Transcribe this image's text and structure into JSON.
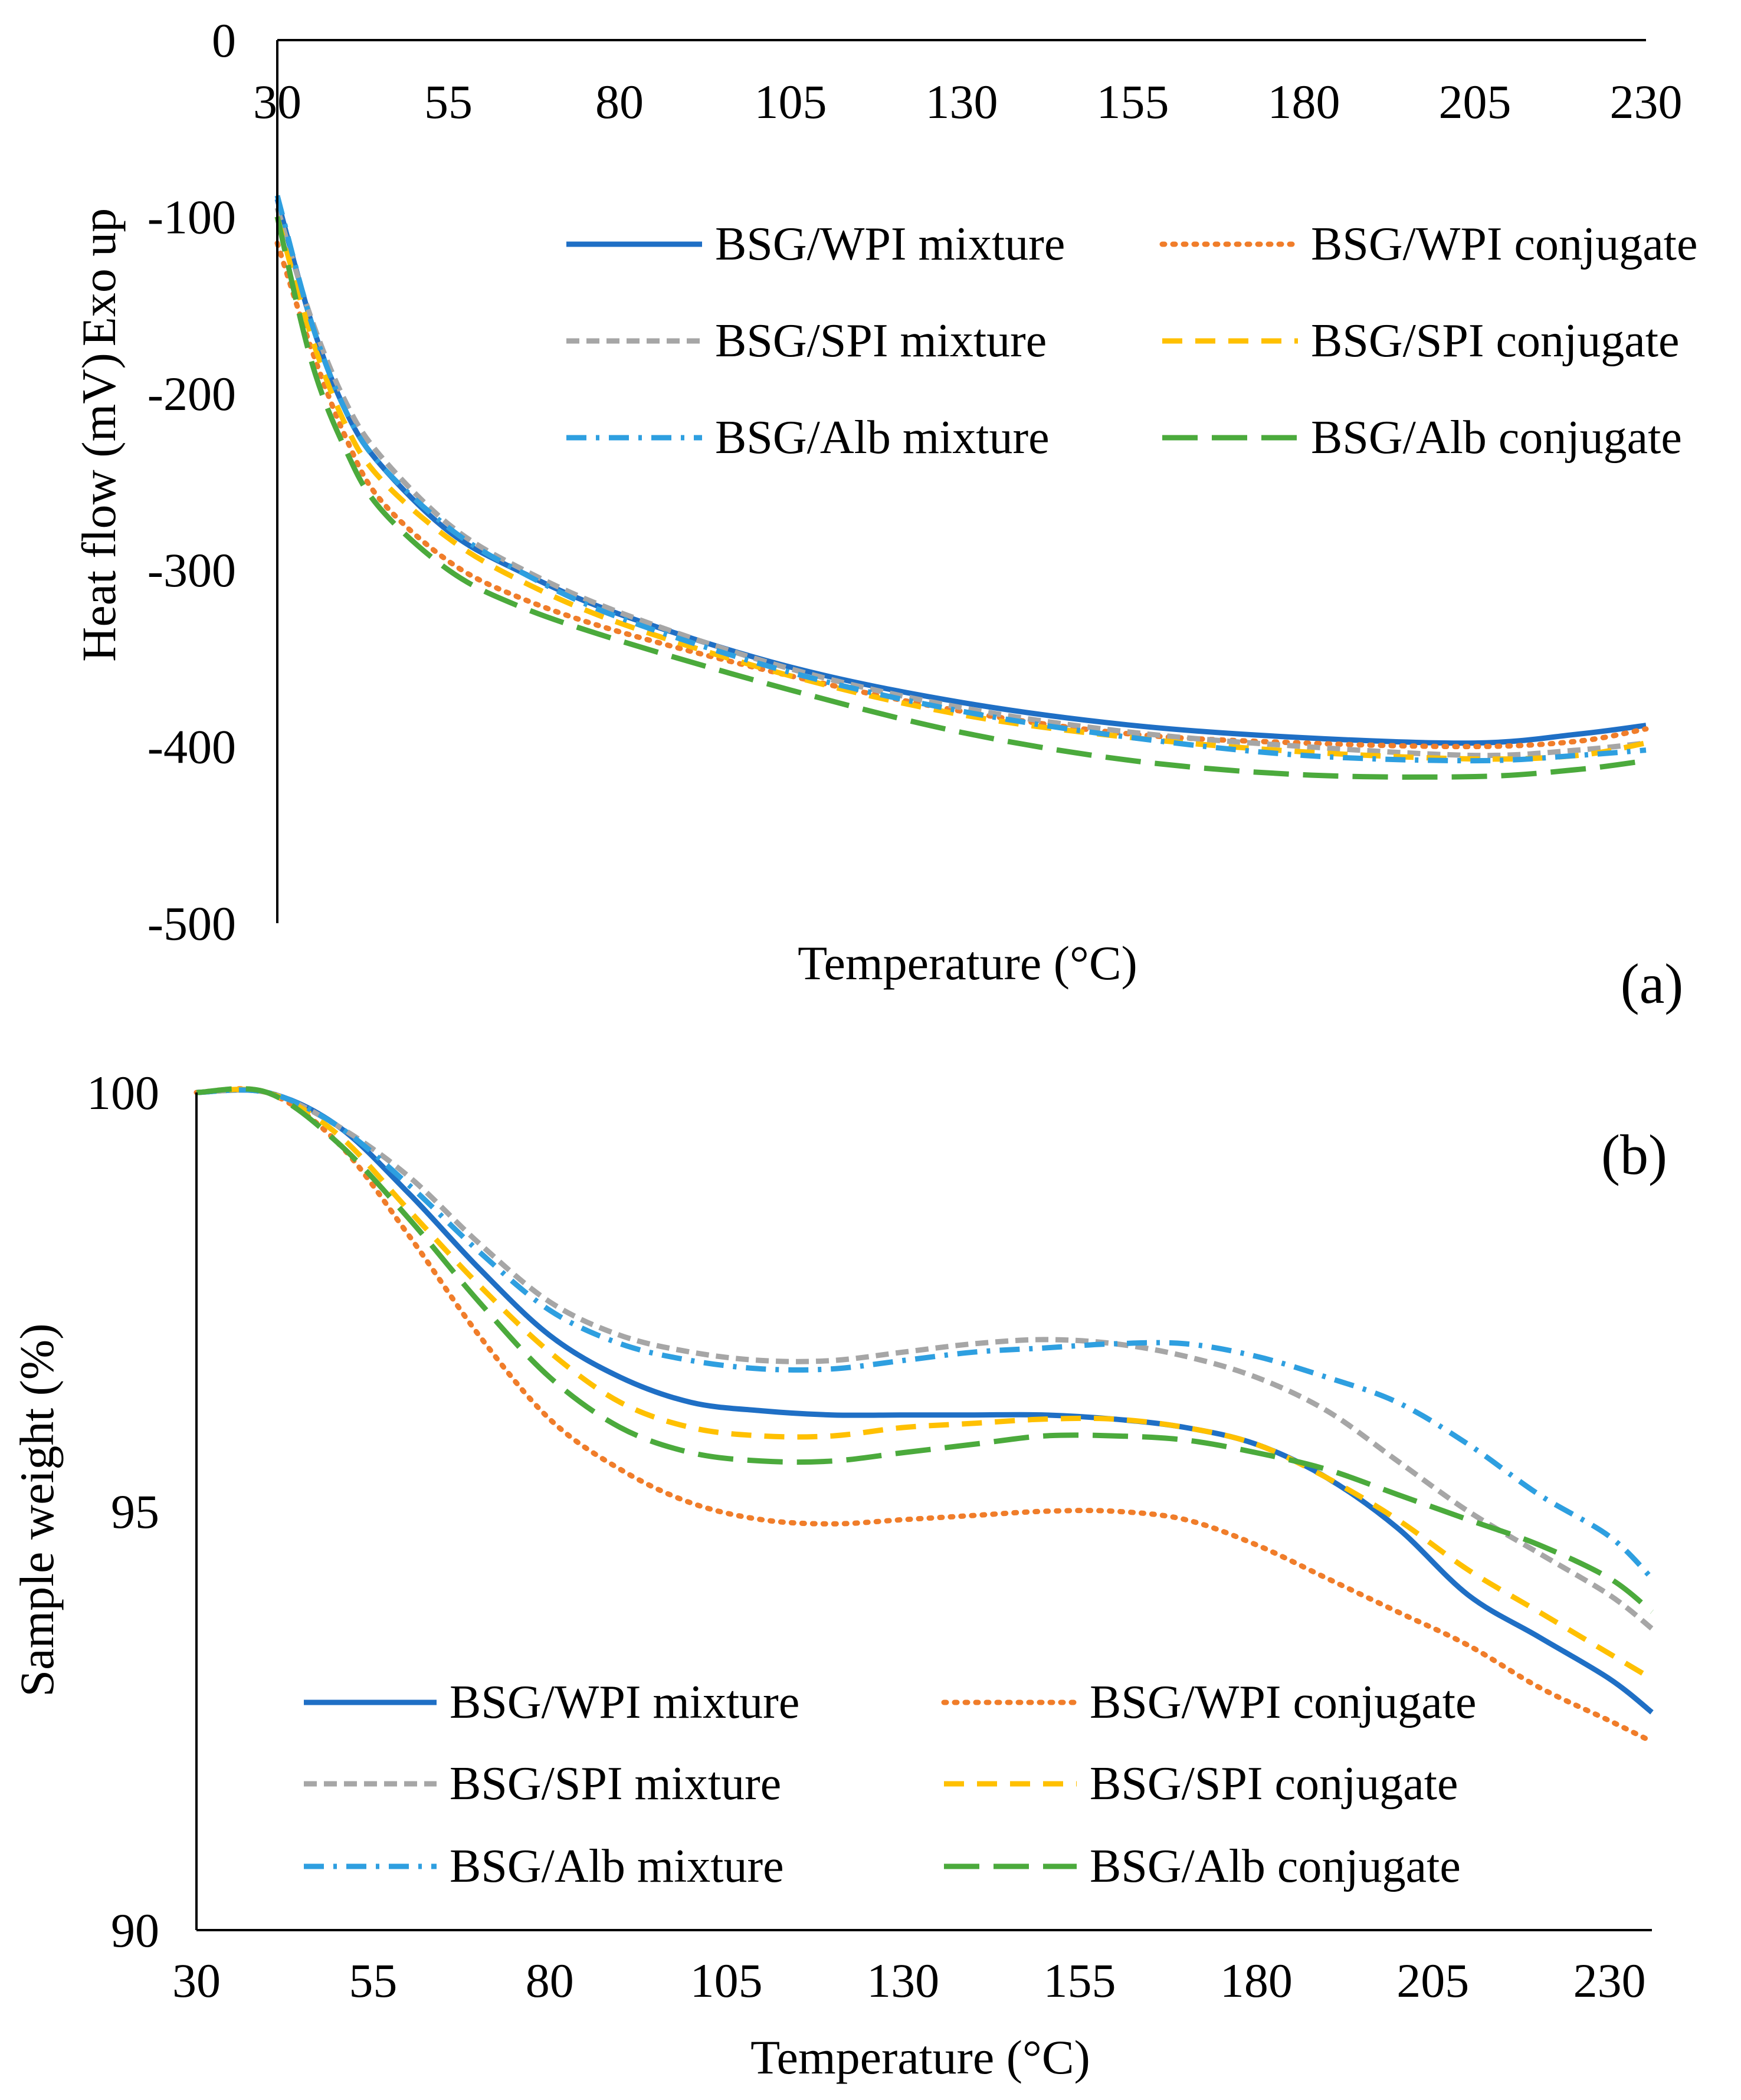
{
  "chart_data": [
    {
      "panel": "(a)",
      "type": "line",
      "title": "",
      "xlabel": "Temperature (°C)",
      "ylabel": "Heat flow (mV)",
      "ylabel_annotation": "Exo up",
      "xlim": [
        30,
        230
      ],
      "ylim": [
        -500,
        0
      ],
      "x_ticks": [
        "30",
        "55",
        "80",
        "105",
        "130",
        "155",
        "180",
        "205",
        "230"
      ],
      "y_ticks": [
        "0",
        "-100",
        "-200",
        "-300",
        "-400",
        "-500"
      ],
      "x_axis_position": "top",
      "grid": false,
      "legend_position": "top-right",
      "series": [
        {
          "name": "BSG/WPI mixture",
          "color": "#1F6FC5",
          "dash": "solid",
          "x": [
            30,
            35,
            40,
            45,
            55,
            65,
            80,
            105,
            130,
            155,
            180,
            205,
            220,
            230
          ],
          "y": [
            -90,
            -160,
            -210,
            -240,
            -278,
            -300,
            -325,
            -355,
            -375,
            -388,
            -395,
            -398,
            -393,
            -388
          ]
        },
        {
          "name": "BSG/WPI conjugate",
          "color": "#F07D2A",
          "dash": "dotted",
          "x": [
            30,
            35,
            40,
            45,
            55,
            65,
            80,
            105,
            130,
            155,
            180,
            205,
            220,
            230
          ],
          "y": [
            -115,
            -175,
            -225,
            -260,
            -295,
            -315,
            -335,
            -360,
            -380,
            -393,
            -398,
            -400,
            -397,
            -390
          ]
        },
        {
          "name": "BSG/SPI mixture",
          "color": "#A6A6A6",
          "dash": "short-dash",
          "x": [
            30,
            35,
            40,
            45,
            55,
            65,
            80,
            105,
            130,
            155,
            180,
            205,
            220,
            230
          ],
          "y": [
            -95,
            -158,
            -205,
            -235,
            -274,
            -298,
            -324,
            -356,
            -378,
            -392,
            -400,
            -405,
            -402,
            -398
          ]
        },
        {
          "name": "BSG/SPI conjugate",
          "color": "#FFC000",
          "dash": "dash",
          "x": [
            30,
            35,
            40,
            45,
            55,
            65,
            80,
            105,
            130,
            155,
            180,
            205,
            220,
            230
          ],
          "y": [
            -100,
            -168,
            -218,
            -248,
            -282,
            -305,
            -330,
            -360,
            -382,
            -395,
            -403,
            -407,
            -405,
            -398
          ]
        },
        {
          "name": "BSG/Alb mixture",
          "color": "#2E9FE0",
          "dash": "dash-dot",
          "x": [
            30,
            35,
            40,
            45,
            55,
            65,
            80,
            105,
            130,
            155,
            180,
            205,
            220,
            230
          ],
          "y": [
            -88,
            -160,
            -210,
            -240,
            -276,
            -300,
            -327,
            -358,
            -380,
            -395,
            -405,
            -408,
            -405,
            -402
          ]
        },
        {
          "name": "BSG/Alb conjugate",
          "color": "#4BAA3C",
          "dash": "long-dash",
          "x": [
            30,
            35,
            40,
            45,
            55,
            65,
            80,
            105,
            130,
            155,
            180,
            205,
            220,
            230
          ],
          "y": [
            -100,
            -182,
            -232,
            -265,
            -300,
            -320,
            -340,
            -368,
            -392,
            -408,
            -416,
            -417,
            -413,
            -408
          ]
        }
      ]
    },
    {
      "panel": "(b)",
      "type": "line",
      "title": "",
      "xlabel": "Temperature (°C)",
      "ylabel": "Sample weight (%)",
      "xlim": [
        30,
        236
      ],
      "ylim": [
        90,
        100
      ],
      "x_ticks": [
        "30",
        "55",
        "80",
        "105",
        "130",
        "155",
        "180",
        "205",
        "230"
      ],
      "y_ticks": [
        "100",
        "95",
        "90"
      ],
      "x_axis_position": "bottom",
      "grid": false,
      "legend_position": "bottom-left",
      "series": [
        {
          "name": "BSG/WPI mixture",
          "color": "#1F6FC5",
          "dash": "solid",
          "x": [
            30,
            40,
            50,
            60,
            70,
            80,
            90,
            100,
            110,
            120,
            130,
            140,
            150,
            160,
            170,
            180,
            190,
            200,
            210,
            220,
            230,
            236
          ],
          "y": [
            100,
            100,
            99.6,
            98.8,
            97.9,
            97.1,
            96.6,
            96.3,
            96.2,
            96.15,
            96.15,
            96.15,
            96.15,
            96.1,
            96,
            95.8,
            95.4,
            94.8,
            94.0,
            93.5,
            93.0,
            92.6
          ]
        },
        {
          "name": "BSG/WPI conjugate",
          "color": "#F07D2A",
          "dash": "dotted",
          "x": [
            30,
            40,
            50,
            60,
            70,
            80,
            90,
            100,
            110,
            120,
            130,
            140,
            150,
            160,
            170,
            180,
            190,
            200,
            210,
            220,
            230,
            236
          ],
          "y": [
            100,
            100,
            99.4,
            98.3,
            97.1,
            96.1,
            95.5,
            95.1,
            94.9,
            94.85,
            94.9,
            94.95,
            95.0,
            95.0,
            94.9,
            94.6,
            94.2,
            93.8,
            93.4,
            92.9,
            92.5,
            92.25
          ]
        },
        {
          "name": "BSG/SPI mixture",
          "color": "#A6A6A6",
          "dash": "short-dash",
          "x": [
            30,
            40,
            50,
            60,
            70,
            80,
            90,
            100,
            110,
            120,
            130,
            140,
            150,
            160,
            170,
            180,
            190,
            200,
            210,
            220,
            230,
            236
          ],
          "y": [
            100,
            100,
            99.6,
            99.0,
            98.2,
            97.5,
            97.1,
            96.9,
            96.8,
            96.8,
            96.9,
            97.0,
            97.05,
            97.0,
            96.85,
            96.6,
            96.2,
            95.6,
            95.0,
            94.5,
            94.0,
            93.6
          ]
        },
        {
          "name": "BSG/SPI conjugate",
          "color": "#FFC000",
          "dash": "dash",
          "x": [
            30,
            40,
            50,
            60,
            70,
            80,
            90,
            100,
            110,
            120,
            130,
            140,
            150,
            160,
            170,
            180,
            190,
            200,
            210,
            220,
            230,
            236
          ],
          "y": [
            100,
            100,
            99.5,
            98.6,
            97.7,
            96.9,
            96.3,
            96.0,
            95.9,
            95.9,
            96.0,
            96.05,
            96.1,
            96.1,
            96.0,
            95.8,
            95.4,
            94.9,
            94.3,
            93.8,
            93.3,
            93.0
          ]
        },
        {
          "name": "BSG/Alb mixture",
          "color": "#2E9FE0",
          "dash": "dash-dot",
          "x": [
            30,
            40,
            50,
            60,
            70,
            80,
            90,
            100,
            110,
            120,
            130,
            140,
            150,
            160,
            170,
            180,
            190,
            200,
            210,
            220,
            230,
            236
          ],
          "y": [
            100,
            100,
            99.6,
            98.9,
            98.1,
            97.4,
            97.0,
            96.8,
            96.7,
            96.7,
            96.8,
            96.9,
            96.95,
            97.0,
            97.0,
            96.85,
            96.6,
            96.3,
            95.8,
            95.2,
            94.7,
            94.2
          ]
        },
        {
          "name": "BSG/Alb conjugate",
          "color": "#4BAA3C",
          "dash": "long-dash",
          "x": [
            30,
            40,
            50,
            60,
            70,
            80,
            90,
            100,
            110,
            120,
            130,
            140,
            150,
            160,
            170,
            180,
            190,
            200,
            210,
            220,
            230,
            236
          ],
          "y": [
            100,
            100,
            99.4,
            98.5,
            97.5,
            96.6,
            96.0,
            95.7,
            95.6,
            95.6,
            95.7,
            95.8,
            95.9,
            95.9,
            95.85,
            95.7,
            95.5,
            95.2,
            94.9,
            94.6,
            94.2,
            93.8
          ]
        }
      ]
    }
  ]
}
